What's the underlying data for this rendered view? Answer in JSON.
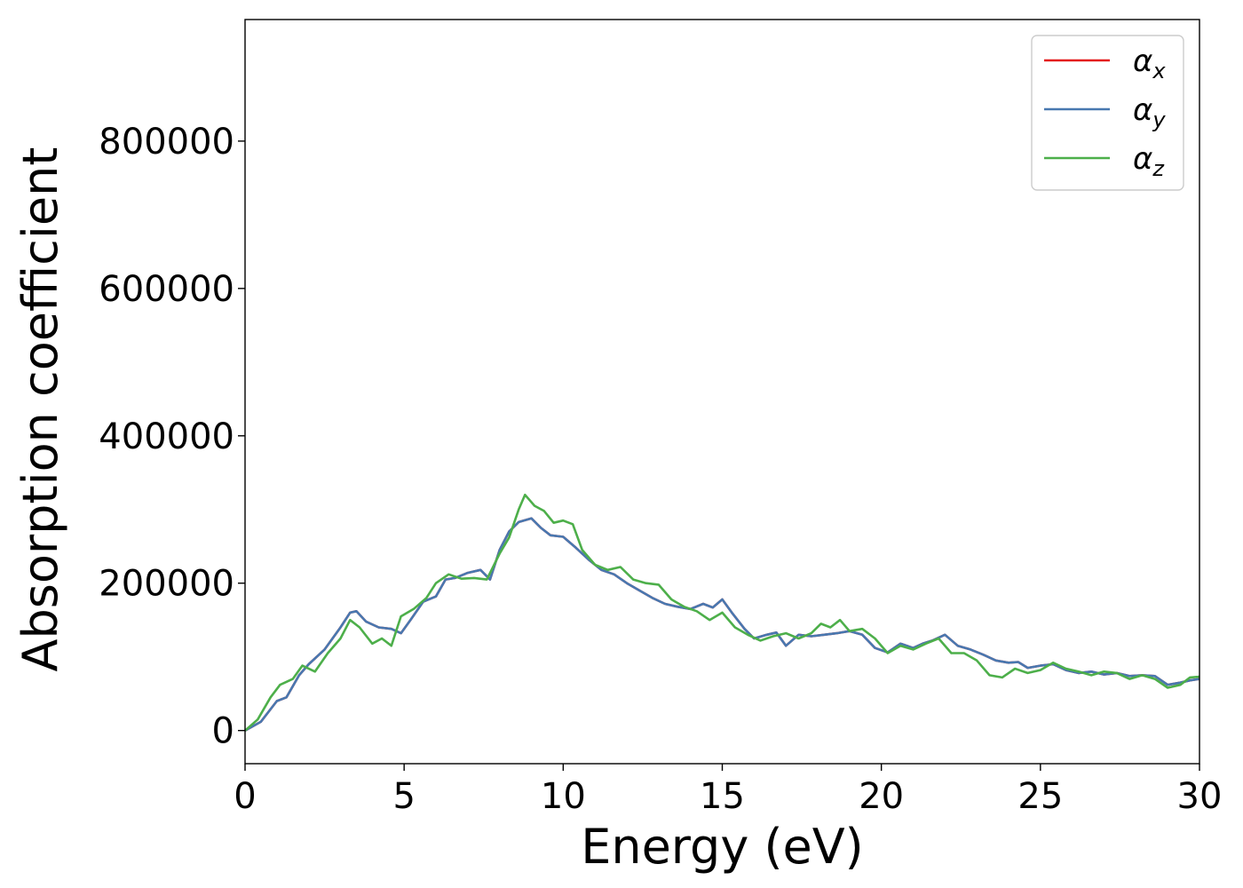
{
  "chart_data": {
    "type": "line",
    "xlabel": "Energy (eV)",
    "ylabel": "Absorption coefficient",
    "xlim": [
      0,
      30
    ],
    "ylim": [
      -45000,
      965000
    ],
    "x_ticks": [
      0,
      5,
      10,
      15,
      20,
      25,
      30
    ],
    "y_ticks": [
      0,
      200000,
      400000,
      600000,
      800000
    ],
    "grid": false,
    "legend_position": "top-right",
    "series": [
      {
        "name": "αx",
        "legend_symbol": "α",
        "legend_subscript": "x",
        "color": "#e41a1c",
        "x": [
          0,
          0.5,
          1,
          1.3,
          1.7,
          2,
          2.5,
          3,
          3.3,
          3.5,
          3.8,
          4.2,
          4.6,
          4.9,
          5.2,
          5.6,
          6,
          6.3,
          6.6,
          7,
          7.4,
          7.7,
          8,
          8.3,
          8.6,
          9,
          9.3,
          9.6,
          10,
          10.4,
          10.8,
          11.2,
          11.6,
          12,
          12.4,
          12.8,
          13.2,
          13.6,
          14,
          14.4,
          14.7,
          15,
          15.3,
          15.7,
          16,
          16.4,
          16.7,
          17,
          17.4,
          17.8,
          18.2,
          18.6,
          19,
          19.4,
          19.8,
          20.2,
          20.6,
          21,
          21.3,
          21.6,
          22,
          22.4,
          22.8,
          23.2,
          23.6,
          24,
          24.3,
          24.6,
          25,
          25.4,
          25.8,
          26.2,
          26.6,
          27,
          27.4,
          27.8,
          28.2,
          28.6,
          29,
          29.4,
          29.7,
          30
        ],
        "y": [
          0,
          12000,
          40000,
          45000,
          75000,
          90000,
          110000,
          140000,
          160000,
          162000,
          148000,
          140000,
          138000,
          132000,
          150000,
          175000,
          182000,
          205000,
          207000,
          214000,
          218000,
          205000,
          245000,
          270000,
          283000,
          288000,
          275000,
          265000,
          263000,
          248000,
          232000,
          218000,
          212000,
          200000,
          190000,
          180000,
          172000,
          168000,
          165000,
          172000,
          167000,
          178000,
          160000,
          138000,
          125000,
          130000,
          133000,
          115000,
          130000,
          128000,
          130000,
          132000,
          135000,
          130000,
          112000,
          106000,
          118000,
          112000,
          118000,
          122000,
          130000,
          115000,
          110000,
          103000,
          95000,
          92000,
          93000,
          85000,
          88000,
          90000,
          82000,
          78000,
          80000,
          76000,
          78000,
          74000,
          75000,
          74000,
          62000,
          65000,
          68000,
          70000
        ]
      },
      {
        "name": "αy",
        "legend_symbol": "α",
        "legend_subscript": "y",
        "color": "#4878b0",
        "x": [
          0,
          0.5,
          1,
          1.3,
          1.7,
          2,
          2.5,
          3,
          3.3,
          3.5,
          3.8,
          4.2,
          4.6,
          4.9,
          5.2,
          5.6,
          6,
          6.3,
          6.6,
          7,
          7.4,
          7.7,
          8,
          8.3,
          8.6,
          9,
          9.3,
          9.6,
          10,
          10.4,
          10.8,
          11.2,
          11.6,
          12,
          12.4,
          12.8,
          13.2,
          13.6,
          14,
          14.4,
          14.7,
          15,
          15.3,
          15.7,
          16,
          16.4,
          16.7,
          17,
          17.4,
          17.8,
          18.2,
          18.6,
          19,
          19.4,
          19.8,
          20.2,
          20.6,
          21,
          21.3,
          21.6,
          22,
          22.4,
          22.8,
          23.2,
          23.6,
          24,
          24.3,
          24.6,
          25,
          25.4,
          25.8,
          26.2,
          26.6,
          27,
          27.4,
          27.8,
          28.2,
          28.6,
          29,
          29.4,
          29.7,
          30
        ],
        "y": [
          0,
          12000,
          40000,
          45000,
          75000,
          90000,
          110000,
          140000,
          160000,
          162000,
          148000,
          140000,
          138000,
          132000,
          150000,
          175000,
          182000,
          205000,
          207000,
          214000,
          218000,
          205000,
          245000,
          270000,
          283000,
          288000,
          275000,
          265000,
          263000,
          248000,
          232000,
          218000,
          212000,
          200000,
          190000,
          180000,
          172000,
          168000,
          165000,
          172000,
          167000,
          178000,
          160000,
          138000,
          125000,
          130000,
          133000,
          115000,
          130000,
          128000,
          130000,
          132000,
          135000,
          130000,
          112000,
          106000,
          118000,
          112000,
          118000,
          122000,
          130000,
          115000,
          110000,
          103000,
          95000,
          92000,
          93000,
          85000,
          88000,
          90000,
          82000,
          78000,
          80000,
          76000,
          78000,
          74000,
          75000,
          74000,
          62000,
          65000,
          68000,
          70000
        ]
      },
      {
        "name": "αz",
        "legend_symbol": "α",
        "legend_subscript": "z",
        "color": "#4daf4a",
        "x": [
          0,
          0.4,
          0.8,
          1.1,
          1.5,
          1.8,
          2.2,
          2.6,
          3,
          3.3,
          3.6,
          4,
          4.3,
          4.6,
          4.9,
          5.3,
          5.7,
          6,
          6.4,
          6.8,
          7.2,
          7.6,
          8,
          8.3,
          8.6,
          8.8,
          9.1,
          9.4,
          9.7,
          10,
          10.3,
          10.6,
          11,
          11.4,
          11.8,
          12.2,
          12.6,
          13,
          13.4,
          13.8,
          14.2,
          14.6,
          15,
          15.4,
          15.8,
          16.2,
          16.6,
          17,
          17.4,
          17.8,
          18.1,
          18.4,
          18.7,
          19,
          19.4,
          19.8,
          20.2,
          20.6,
          21,
          21.4,
          21.8,
          22.2,
          22.6,
          23,
          23.4,
          23.8,
          24.2,
          24.6,
          25,
          25.4,
          25.8,
          26.2,
          26.6,
          27,
          27.4,
          27.8,
          28.2,
          28.6,
          29,
          29.4,
          29.7,
          30
        ],
        "y": [
          0,
          15000,
          45000,
          62000,
          70000,
          88000,
          80000,
          105000,
          125000,
          150000,
          140000,
          118000,
          125000,
          115000,
          155000,
          165000,
          180000,
          200000,
          212000,
          206000,
          207000,
          205000,
          240000,
          262000,
          300000,
          320000,
          305000,
          298000,
          282000,
          285000,
          280000,
          245000,
          225000,
          218000,
          222000,
          205000,
          200000,
          198000,
          178000,
          168000,
          162000,
          150000,
          160000,
          140000,
          130000,
          122000,
          128000,
          132000,
          125000,
          132000,
          145000,
          140000,
          150000,
          135000,
          138000,
          125000,
          105000,
          115000,
          110000,
          118000,
          125000,
          105000,
          105000,
          95000,
          75000,
          72000,
          84000,
          78000,
          82000,
          92000,
          84000,
          80000,
          75000,
          80000,
          78000,
          70000,
          75000,
          70000,
          58000,
          62000,
          72000,
          73000
        ]
      }
    ]
  }
}
